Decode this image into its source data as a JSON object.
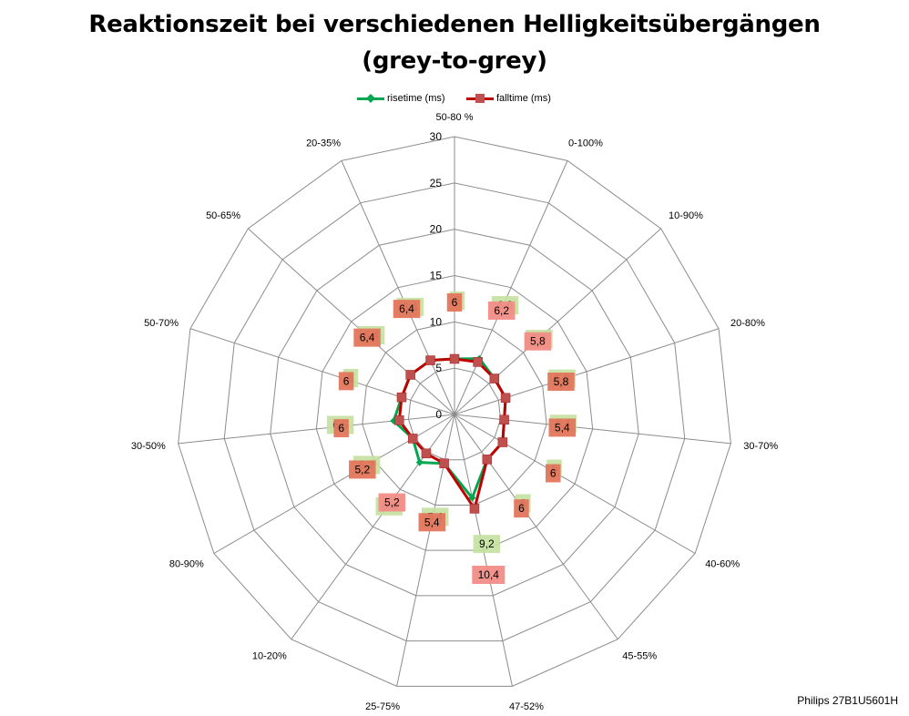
{
  "title_line1": "Reaktionszeit bei verschiedenen Helligkeitsübergängen",
  "title_line2": "(grey-to-grey)",
  "footer": "Philips 27B1U5601H",
  "chart_data": {
    "type": "radar",
    "categories": [
      "50-80 %",
      "0-100%",
      "10-90%",
      "20-80%",
      "30-70%",
      "40-60%",
      "45-55%",
      "47-52%",
      "25-75%",
      "10-20%",
      "80-90%",
      "30-50%",
      "50-70%",
      "50-65%",
      "20-35%"
    ],
    "rlim": [
      0,
      30
    ],
    "ticks": [
      "0",
      "5",
      "10",
      "15",
      "20",
      "25",
      "30"
    ],
    "series": [
      {
        "name": "risetime (ms)",
        "color": "#00a650",
        "marker": "diamond",
        "values": [
          6,
          6.6,
          5.8,
          5.8,
          5.4,
          6,
          6,
          9.2,
          5.4,
          6.4,
          5.2,
          6.6,
          6,
          6.4,
          6.4
        ],
        "labels": [
          "6",
          "6,6",
          "5,8",
          "5,8",
          "5,4",
          "6",
          "6",
          "9,2",
          "5,4",
          "6,4",
          "5,2",
          "6,6",
          "6",
          "6,4",
          "6,4"
        ],
        "label_color": "#c4e0a0"
      },
      {
        "name": "falltime (ms)",
        "color": "#c00000",
        "marker": "square",
        "values": [
          6,
          6.2,
          5.8,
          5.8,
          5.4,
          6,
          6,
          10.4,
          5.4,
          5.2,
          5.2,
          6,
          6,
          6.4,
          6.4
        ],
        "labels": [
          "6",
          "6,2",
          "5,8",
          "5,8",
          "5,4",
          "6",
          "6",
          "10,4",
          "5,4",
          "5,2",
          "5,2",
          "6",
          "6",
          "6,4",
          "6,4"
        ],
        "label_color": "#f08070"
      }
    ],
    "legend": "top"
  }
}
